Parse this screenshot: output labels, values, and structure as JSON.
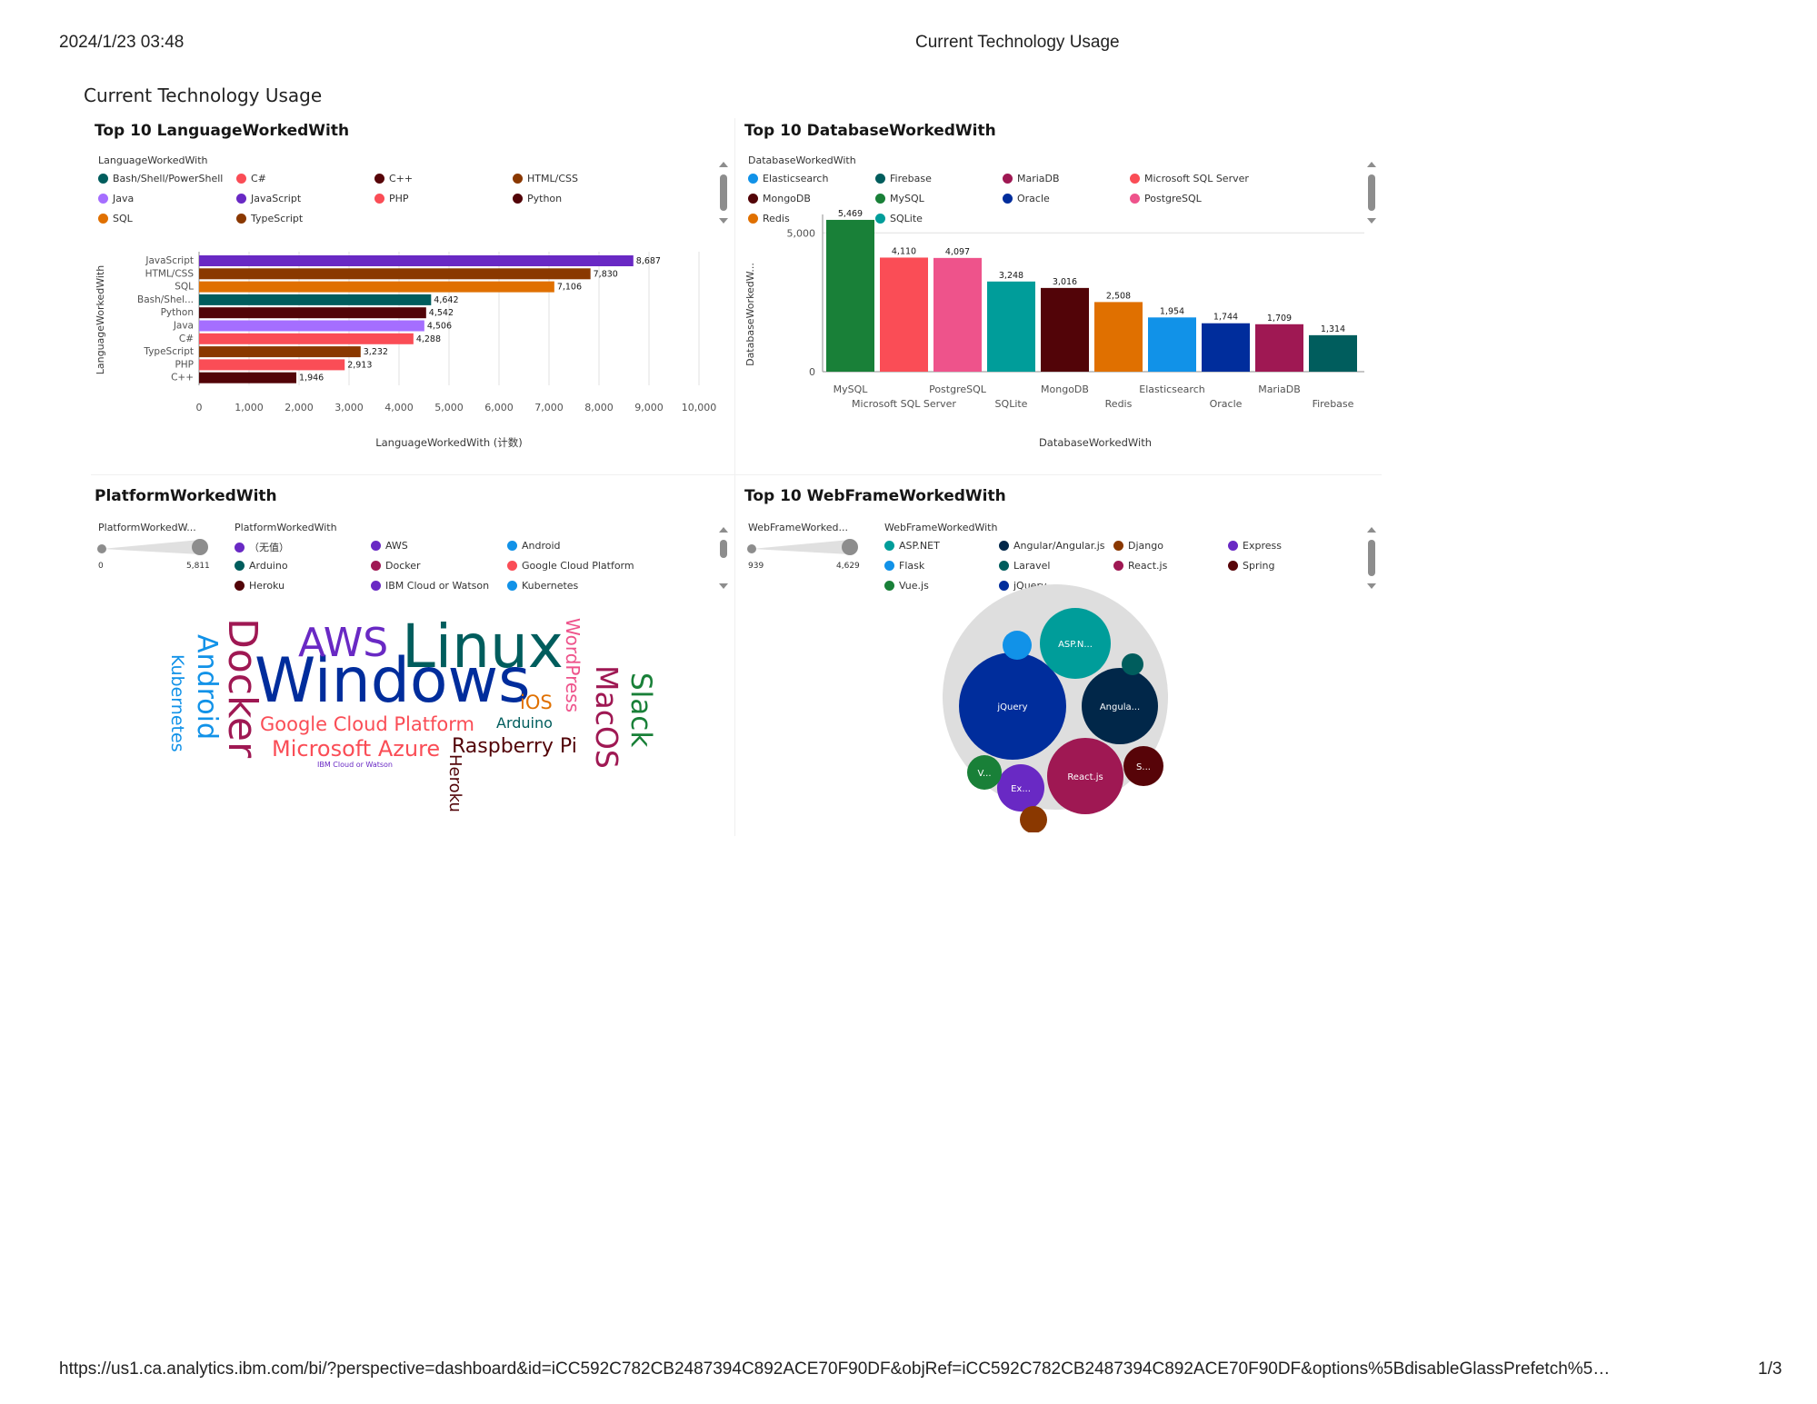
{
  "header": {
    "datetime": "2024/1/23 03:48",
    "title": "Current Technology Usage"
  },
  "footer": {
    "url": "https://us1.ca.analytics.ibm.com/bi/?perspective=dashboard&id=iCC592C782CB2487394C892ACE70F90DF&objRef=iCC592C782CB2487394C892ACE70F90DF&options%5BdisableGlassPrefetch%5…",
    "page": "1/3"
  },
  "dashboard": {
    "title": "Current Technology Usage"
  },
  "chart_data": [
    {
      "type": "bar",
      "orientation": "horizontal",
      "title": "Top 10 LanguageWorkedWith",
      "legend_title": "LanguageWorkedWith",
      "legend": [
        {
          "label": "Bash/Shell/PowerShell",
          "color": "#005d5d"
        },
        {
          "label": "C#",
          "color": "#fa4d56"
        },
        {
          "label": "C++",
          "color": "#570408"
        },
        {
          "label": "HTML/CSS",
          "color": "#8a3800"
        },
        {
          "label": "Java",
          "color": "#a56eff"
        },
        {
          "label": "JavaScript",
          "color": "#6929c4"
        },
        {
          "label": "PHP",
          "color": "#fa4d56"
        },
        {
          "label": "Python",
          "color": "#520408"
        },
        {
          "label": "SQL",
          "color": "#e07000"
        },
        {
          "label": "TypeScript",
          "color": "#8a3800"
        }
      ],
      "categories": [
        "JavaScript",
        "HTML/CSS",
        "SQL",
        "Bash/Shel...",
        "Python",
        "Java",
        "C#",
        "TypeScript",
        "PHP",
        "C++"
      ],
      "values": [
        8687,
        7830,
        7106,
        4642,
        4542,
        4506,
        4288,
        3232,
        2913,
        1946
      ],
      "value_labels": [
        "8,687",
        "7,830",
        "7,106",
        "4,642",
        "4,542",
        "4,506",
        "4,288",
        "3,232",
        "2,913",
        "1,946"
      ],
      "colors": [
        "#6929c4",
        "#8a3800",
        "#e07000",
        "#005d5d",
        "#520408",
        "#a56eff",
        "#fa4d56",
        "#8a3800",
        "#fa4d56",
        "#520408"
      ],
      "xticks": [
        "0",
        "1,000",
        "2,000",
        "3,000",
        "4,000",
        "5,000",
        "6,000",
        "7,000",
        "8,000",
        "9,000",
        "10,000"
      ],
      "xlim": [
        0,
        10000
      ],
      "xlabel": "LanguageWorkedWith (计数)",
      "ylabel": "LanguageWorkedWith",
      "grid": true
    },
    {
      "type": "bar",
      "title": "Top 10 DatabaseWorkedWith",
      "legend_title": "DatabaseWorkedWith",
      "legend": [
        {
          "label": "Elasticsearch",
          "color": "#1192e8"
        },
        {
          "label": "Firebase",
          "color": "#005d5d"
        },
        {
          "label": "MariaDB",
          "color": "#9f1853"
        },
        {
          "label": "Microsoft SQL Server",
          "color": "#fa4d56"
        },
        {
          "label": "MongoDB",
          "color": "#520408"
        },
        {
          "label": "MySQL",
          "color": "#198038"
        },
        {
          "label": "Oracle",
          "color": "#002d9c"
        },
        {
          "label": "PostgreSQL",
          "color": "#ee538b"
        },
        {
          "label": "Redis",
          "color": "#e07000"
        },
        {
          "label": "SQLite",
          "color": "#009d9a"
        }
      ],
      "categories": [
        "MySQL",
        "Microsoft SQL Server",
        "PostgreSQL",
        "SQLite",
        "MongoDB",
        "Redis",
        "Elasticsearch",
        "Oracle",
        "MariaDB",
        "Firebase"
      ],
      "values": [
        5469,
        4110,
        4097,
        3248,
        3016,
        2508,
        1954,
        1744,
        1709,
        1314
      ],
      "value_labels": [
        "5,469",
        "4,110",
        "4,097",
        "3,248",
        "3,016",
        "2,508",
        "1,954",
        "1,744",
        "1,709",
        "1,314"
      ],
      "colors": [
        "#198038",
        "#fa4d56",
        "#ee538b",
        "#009d9a",
        "#520408",
        "#e07000",
        "#1192e8",
        "#002d9c",
        "#9f1853",
        "#005d5d"
      ],
      "yticks": [
        "0",
        "5,000"
      ],
      "ylim": [
        0,
        5500
      ],
      "xlabel": "DatabaseWorkedWith",
      "ylabel": "DatabaseWorkedW...",
      "grid": true
    },
    {
      "type": "wordcloud",
      "title": "PlatformWorkedWith",
      "slider_title": "PlatformWorkedW...",
      "slider_min": "0",
      "slider_max": "5,811",
      "legend_title": "PlatformWorkedWith",
      "legend": [
        {
          "label": "（无值）",
          "color": "#6929c4"
        },
        {
          "label": "AWS",
          "color": "#6929c4"
        },
        {
          "label": "Android",
          "color": "#1192e8"
        },
        {
          "label": "Arduino",
          "color": "#005d5d"
        },
        {
          "label": "Docker",
          "color": "#9f1853"
        },
        {
          "label": "Google Cloud Platform",
          "color": "#fa4d56"
        },
        {
          "label": "Heroku",
          "color": "#520408"
        },
        {
          "label": "IBM Cloud or Watson",
          "color": "#6929c4"
        },
        {
          "label": "Kubernetes",
          "color": "#1192e8"
        }
      ],
      "words": [
        {
          "text": "Windows",
          "color": "#002d9c"
        },
        {
          "text": "Linux",
          "color": "#005d5d"
        },
        {
          "text": "Docker",
          "color": "#9f1853"
        },
        {
          "text": "AWS",
          "color": "#6929c4"
        },
        {
          "text": "Android",
          "color": "#1192e8"
        },
        {
          "text": "Kubernetes",
          "color": "#1192e8"
        },
        {
          "text": "Google Cloud Platform",
          "color": "#fa4d56"
        },
        {
          "text": "Microsoft Azure",
          "color": "#fa4d56"
        },
        {
          "text": "Raspberry Pi",
          "color": "#520408"
        },
        {
          "text": "Heroku",
          "color": "#520408"
        },
        {
          "text": "WordPress",
          "color": "#ee538b"
        },
        {
          "text": "MacOS",
          "color": "#9f1853"
        },
        {
          "text": "Slack",
          "color": "#198038"
        },
        {
          "text": "iOS",
          "color": "#e07000"
        },
        {
          "text": "Arduino",
          "color": "#005d5d"
        },
        {
          "text": "IBM Cloud or Watson",
          "color": "#6929c4"
        }
      ]
    },
    {
      "type": "bubble",
      "title": "Top 10  WebFrameWorkedWith",
      "slider_title": "WebFrameWorked...",
      "slider_min": "939",
      "slider_max": "4,629",
      "legend_title": "WebFrameWorkedWith",
      "legend": [
        {
          "label": "ASP.NET",
          "color": "#009d9a"
        },
        {
          "label": "Angular/Angular.js",
          "color": "#012749"
        },
        {
          "label": "Django",
          "color": "#8a3800"
        },
        {
          "label": "Express",
          "color": "#6929c4"
        },
        {
          "label": "Flask",
          "color": "#1192e8"
        },
        {
          "label": "Laravel",
          "color": "#005d5d"
        },
        {
          "label": "React.js",
          "color": "#9f1853"
        },
        {
          "label": "Spring",
          "color": "#570408"
        },
        {
          "label": "Vue.js",
          "color": "#198038"
        },
        {
          "label": "jQuery",
          "color": "#002d9c"
        }
      ],
      "bubbles": [
        {
          "label": "jQuery",
          "color": "#002d9c"
        },
        {
          "label": "React.js",
          "color": "#9f1853"
        },
        {
          "label": "Angula...",
          "color": "#012749"
        },
        {
          "label": "ASP.N...",
          "color": "#009d9a"
        },
        {
          "label": "S...",
          "color": "#570408"
        },
        {
          "label": "Ex...",
          "color": "#6929c4"
        },
        {
          "label": "V...",
          "color": "#198038"
        },
        {
          "label": "",
          "color": "#1192e8"
        },
        {
          "label": "",
          "color": "#005d5d"
        },
        {
          "label": "",
          "color": "#8a3800"
        }
      ]
    }
  ]
}
